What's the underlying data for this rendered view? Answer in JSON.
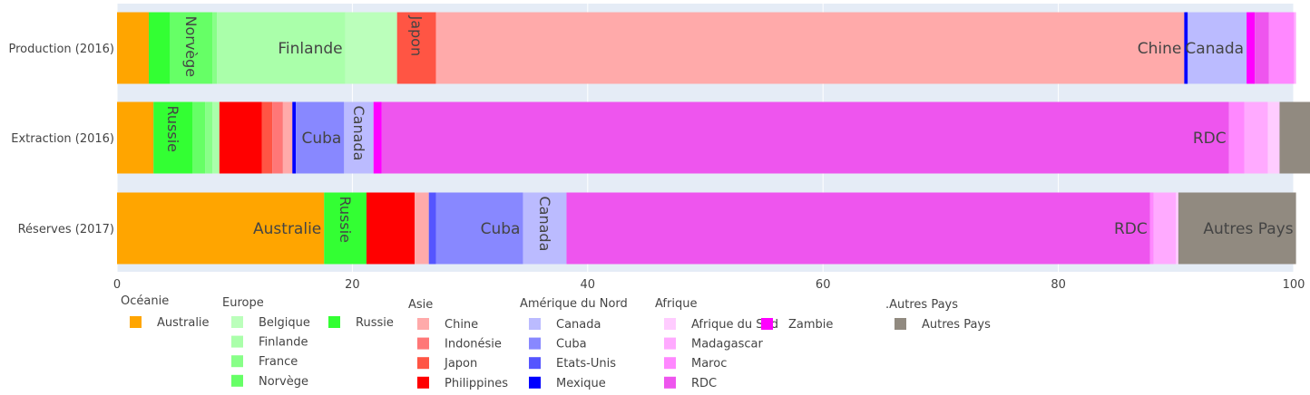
{
  "chart_data": {
    "type": "bar",
    "orientation": "horizontal",
    "barmode": "stack",
    "categories": [
      "Production (2016)",
      "Extraction (2016)",
      "Réserves (2017)"
    ],
    "x_axis": {
      "range": [
        0,
        100
      ],
      "ticks": [
        0,
        20,
        40,
        60,
        80,
        100
      ]
    },
    "grid": true,
    "legend_position": "bottom",
    "legend_groups": [
      {
        "title": "Océanie",
        "items": [
          "Australie"
        ]
      },
      {
        "title": "Europe",
        "items": [
          "Belgique",
          "Finlande",
          "France",
          "Norvège",
          "Russie"
        ]
      },
      {
        "title": "Asie",
        "items": [
          "Chine",
          "Indonésie",
          "Japon",
          "Philippines"
        ]
      },
      {
        "title": "Amérique du Nord",
        "items": [
          "Canada",
          "Cuba",
          "Etats-Unis",
          "Mexique"
        ]
      },
      {
        "title": "Afrique",
        "items": [
          "Afrique du Sud",
          "Madagascar",
          "Maroc",
          "RDC",
          "Zambie"
        ]
      },
      {
        "title": ".Autres Pays",
        "items": [
          "Autres Pays"
        ]
      }
    ],
    "series": [
      {
        "name": "Australie",
        "group": "Océanie",
        "color": "#ffa500",
        "values": [
          2.7,
          3.1,
          17.6
        ],
        "label_on_bar": [
          false,
          false,
          true
        ]
      },
      {
        "name": "Russie",
        "group": "Europe",
        "color": "#33ff33",
        "values": [
          1.8,
          3.3,
          3.6
        ],
        "label_on_bar": [
          false,
          true,
          true
        ]
      },
      {
        "name": "Norvège",
        "group": "Europe",
        "color": "#66ff66",
        "values": [
          3.6,
          1.1,
          0
        ],
        "label_on_bar": [
          true,
          false,
          false
        ]
      },
      {
        "name": "France",
        "group": "Europe",
        "color": "#88ff88",
        "values": [
          0.4,
          0.6,
          0
        ],
        "label_on_bar": [
          false,
          false,
          false
        ]
      },
      {
        "name": "Finlande",
        "group": "Europe",
        "color": "#aaffaa",
        "values": [
          10.9,
          0.6,
          0
        ],
        "label_on_bar": [
          true,
          false,
          false
        ]
      },
      {
        "name": "Belgique",
        "group": "Europe",
        "color": "#bbffbb",
        "values": [
          4.4,
          0,
          0
        ],
        "label_on_bar": [
          false,
          false,
          false
        ]
      },
      {
        "name": "Philippines",
        "group": "Asie",
        "color": "#ff0000",
        "values": [
          0,
          3.6,
          4.1
        ],
        "label_on_bar": [
          false,
          false,
          false
        ]
      },
      {
        "name": "Japon",
        "group": "Asie",
        "color": "#ff5544",
        "values": [
          3.3,
          0.9,
          0
        ],
        "label_on_bar": [
          true,
          false,
          false
        ]
      },
      {
        "name": "Indonésie",
        "group": "Asie",
        "color": "#ff7777",
        "values": [
          0,
          0.9,
          0
        ],
        "label_on_bar": [
          false,
          false,
          false
        ]
      },
      {
        "name": "Chine",
        "group": "Asie",
        "color": "#ffaaaa",
        "values": [
          63.6,
          0.8,
          1.2
        ],
        "label_on_bar": [
          true,
          false,
          false
        ]
      },
      {
        "name": "Mexique",
        "group": "Amérique du Nord",
        "color": "#0000ff",
        "values": [
          0.3,
          0.3,
          0
        ],
        "label_on_bar": [
          false,
          false,
          false
        ]
      },
      {
        "name": "Etats-Unis",
        "group": "Amérique du Nord",
        "color": "#5555ff",
        "values": [
          0,
          0,
          0.6
        ],
        "label_on_bar": [
          false,
          false,
          false
        ]
      },
      {
        "name": "Cuba",
        "group": "Amérique du Nord",
        "color": "#8888ff",
        "values": [
          0,
          4.1,
          7.4
        ],
        "label_on_bar": [
          false,
          true,
          true
        ]
      },
      {
        "name": "Canada",
        "group": "Amérique du Nord",
        "color": "#bbbbff",
        "values": [
          5.0,
          2.5,
          3.7
        ],
        "label_on_bar": [
          true,
          true,
          true
        ]
      },
      {
        "name": "Zambie",
        "group": "Afrique",
        "color": "#ff00ff",
        "values": [
          0.7,
          0.7,
          0
        ],
        "label_on_bar": [
          false,
          false,
          false
        ]
      },
      {
        "name": "RDC",
        "group": "Afrique",
        "color": "#ee55ee",
        "values": [
          1.2,
          72.0,
          49.6
        ],
        "label_on_bar": [
          false,
          true,
          true
        ]
      },
      {
        "name": "Maroc",
        "group": "Afrique",
        "color": "#ff88ff",
        "values": [
          2.1,
          1.3,
          0.3
        ],
        "label_on_bar": [
          false,
          false,
          false
        ]
      },
      {
        "name": "Madagascar",
        "group": "Afrique",
        "color": "#ffaaff",
        "values": [
          0.2,
          2.0,
          1.9
        ],
        "label_on_bar": [
          false,
          false,
          false
        ]
      },
      {
        "name": "Afrique du Sud",
        "group": "Afrique",
        "color": "#ffccff",
        "values": [
          0,
          1.0,
          0.2
        ],
        "label_on_bar": [
          false,
          false,
          false
        ]
      },
      {
        "name": "Autres Pays",
        "group": ".Autres Pays",
        "color": "#918a80",
        "values": [
          0,
          3.0,
          10.0
        ],
        "label_on_bar": [
          false,
          false,
          true
        ]
      }
    ]
  }
}
